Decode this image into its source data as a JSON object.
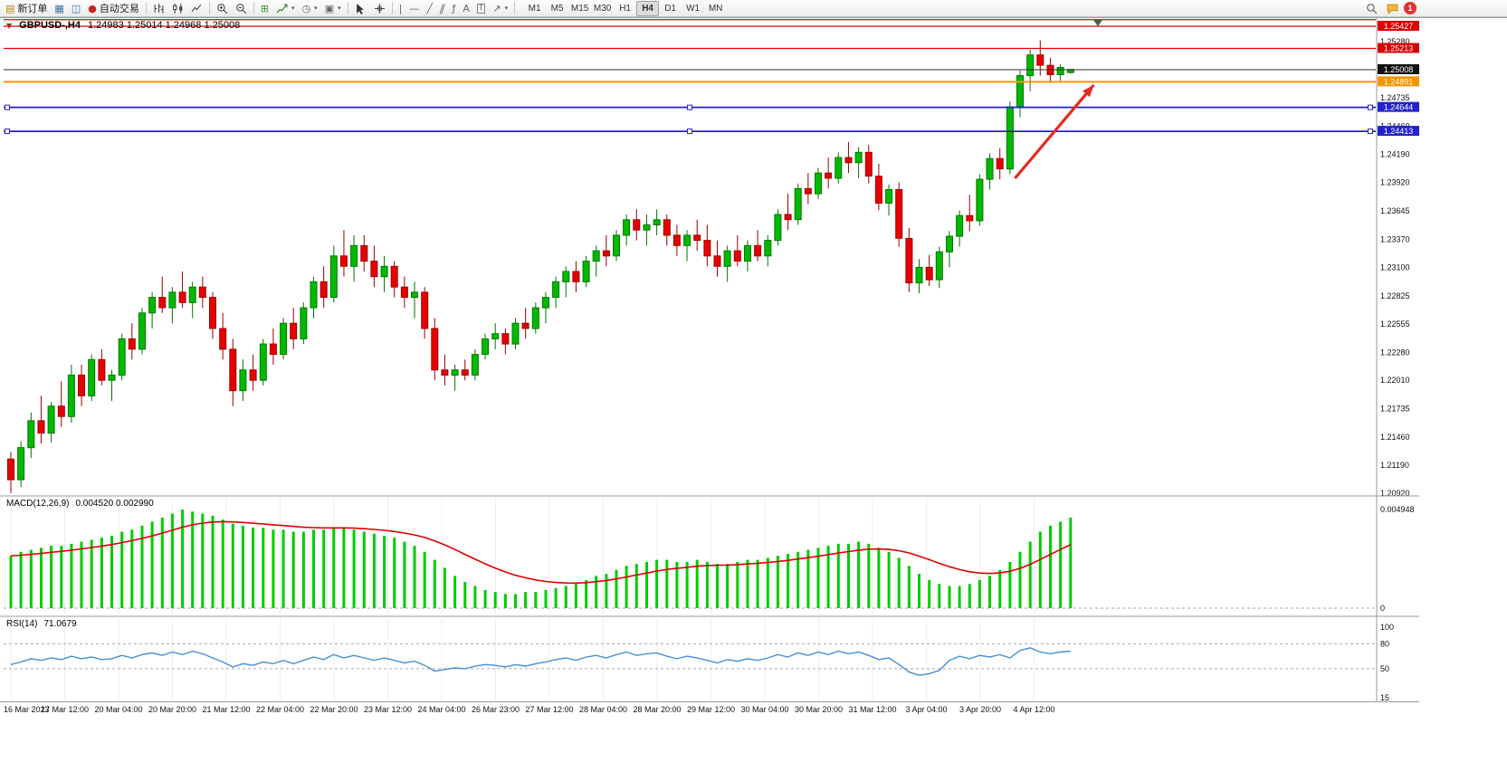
{
  "icons": {
    "new_order": "▤",
    "charts": "▦",
    "profiles": "◫",
    "autotrade": "●",
    "tile": "⊞",
    "clock": "◷",
    "template": "▣",
    "vline": "|",
    "hline": "—",
    "trendline": "╱",
    "channel": "∥",
    "fibonacci": "ƒ",
    "text": "A",
    "label": "T",
    "arrows": "↗",
    "caret": "▾",
    "one_click": "▼"
  },
  "toolbar": {
    "new_order_label": "新订单",
    "autotrade_label": "自动交易",
    "timeframes": [
      "M1",
      "M5",
      "M15",
      "M30",
      "H1",
      "H4",
      "D1",
      "W1",
      "MN"
    ],
    "active_timeframe": "H4",
    "notification_count": "1"
  },
  "chart": {
    "title": "GBPUSD-,H4",
    "ohlc": "1.24983 1.25014 1.24968 1.25008"
  },
  "macd": {
    "label": "MACD(12,26,9)",
    "values": "0.004520 0.002990"
  },
  "rsi": {
    "label": "RSI(14)",
    "value": "71.0679"
  },
  "chart_data": {
    "type": "candlestick",
    "symbol": "GBPUSD",
    "period": "H4",
    "price_range": [
      1.2092,
      1.2549
    ],
    "candles": [
      [
        1.2125,
        1.2132,
        1.2092,
        1.2105
      ],
      [
        1.2105,
        1.2142,
        1.2098,
        1.2136
      ],
      [
        1.2136,
        1.217,
        1.2126,
        1.2162
      ],
      [
        1.2162,
        1.2186,
        1.214,
        1.215
      ],
      [
        1.215,
        1.218,
        1.2141,
        1.2176
      ],
      [
        1.2176,
        1.22,
        1.2156,
        1.2166
      ],
      [
        1.2166,
        1.2216,
        1.216,
        1.2206
      ],
      [
        1.2206,
        1.2216,
        1.2176,
        1.2186
      ],
      [
        1.2186,
        1.2226,
        1.2181,
        1.2221
      ],
      [
        1.2221,
        1.2231,
        1.2196,
        1.2201
      ],
      [
        1.2201,
        1.2211,
        1.2181,
        1.2206
      ],
      [
        1.2206,
        1.2246,
        1.2201,
        1.2241
      ],
      [
        1.2241,
        1.2256,
        1.2221,
        1.2231
      ],
      [
        1.2231,
        1.2271,
        1.2226,
        1.2266
      ],
      [
        1.2266,
        1.2286,
        1.2251,
        1.2281
      ],
      [
        1.2281,
        1.2301,
        1.2266,
        1.2271
      ],
      [
        1.2271,
        1.2291,
        1.2256,
        1.2286
      ],
      [
        1.2286,
        1.2306,
        1.2271,
        1.2276
      ],
      [
        1.2276,
        1.2296,
        1.2261,
        1.2291
      ],
      [
        1.2291,
        1.2301,
        1.2271,
        1.2281
      ],
      [
        1.2281,
        1.2286,
        1.2241,
        1.2251
      ],
      [
        1.2251,
        1.2266,
        1.2221,
        1.2231
      ],
      [
        1.2231,
        1.2241,
        1.2176,
        1.2191
      ],
      [
        1.2191,
        1.2221,
        1.2181,
        1.2211
      ],
      [
        1.2211,
        1.2226,
        1.2191,
        1.2201
      ],
      [
        1.2201,
        1.2241,
        1.2196,
        1.2236
      ],
      [
        1.2236,
        1.2251,
        1.2216,
        1.2226
      ],
      [
        1.2226,
        1.2261,
        1.2221,
        1.2256
      ],
      [
        1.2256,
        1.2271,
        1.2231,
        1.2241
      ],
      [
        1.2241,
        1.2276,
        1.2236,
        1.2271
      ],
      [
        1.2271,
        1.2301,
        1.2261,
        1.2296
      ],
      [
        1.2296,
        1.2311,
        1.2271,
        1.2281
      ],
      [
        1.2281,
        1.2331,
        1.2276,
        1.2321
      ],
      [
        1.2321,
        1.2346,
        1.2301,
        1.2311
      ],
      [
        1.2311,
        1.2341,
        1.2296,
        1.2331
      ],
      [
        1.2331,
        1.2341,
        1.2306,
        1.2316
      ],
      [
        1.2316,
        1.2331,
        1.2291,
        1.2301
      ],
      [
        1.2301,
        1.2321,
        1.2286,
        1.2311
      ],
      [
        1.2311,
        1.2316,
        1.2281,
        1.2291
      ],
      [
        1.2291,
        1.2301,
        1.2271,
        1.2281
      ],
      [
        1.2281,
        1.2296,
        1.2261,
        1.2286
      ],
      [
        1.2286,
        1.2291,
        1.2241,
        1.2251
      ],
      [
        1.2251,
        1.2261,
        1.2201,
        1.2211
      ],
      [
        1.2211,
        1.2226,
        1.2196,
        1.2206
      ],
      [
        1.2206,
        1.2216,
        1.2191,
        1.2211
      ],
      [
        1.2211,
        1.2221,
        1.2201,
        1.2206
      ],
      [
        1.2206,
        1.2231,
        1.2201,
        1.2226
      ],
      [
        1.2226,
        1.2246,
        1.2221,
        1.2241
      ],
      [
        1.2241,
        1.2256,
        1.2231,
        1.2246
      ],
      [
        1.2246,
        1.2251,
        1.2226,
        1.2236
      ],
      [
        1.2236,
        1.2261,
        1.2231,
        1.2256
      ],
      [
        1.2256,
        1.2271,
        1.2241,
        1.2251
      ],
      [
        1.2251,
        1.2276,
        1.2246,
        1.2271
      ],
      [
        1.2271,
        1.2286,
        1.2256,
        1.2281
      ],
      [
        1.2281,
        1.2301,
        1.2271,
        1.2296
      ],
      [
        1.2296,
        1.2311,
        1.2281,
        1.2306
      ],
      [
        1.2306,
        1.2316,
        1.2286,
        1.2296
      ],
      [
        1.2296,
        1.2321,
        1.2291,
        1.2316
      ],
      [
        1.2316,
        1.2331,
        1.2301,
        1.2326
      ],
      [
        1.2326,
        1.2341,
        1.2311,
        1.2321
      ],
      [
        1.2321,
        1.2346,
        1.2316,
        1.2341
      ],
      [
        1.2341,
        1.2361,
        1.2331,
        1.2356
      ],
      [
        1.2356,
        1.2366,
        1.2336,
        1.2346
      ],
      [
        1.2346,
        1.2361,
        1.2331,
        1.2351
      ],
      [
        1.2351,
        1.2366,
        1.2341,
        1.2356
      ],
      [
        1.2356,
        1.2361,
        1.2331,
        1.2341
      ],
      [
        1.2341,
        1.2351,
        1.2321,
        1.2331
      ],
      [
        1.2331,
        1.2346,
        1.2316,
        1.2341
      ],
      [
        1.2341,
        1.2356,
        1.2326,
        1.2336
      ],
      [
        1.2336,
        1.2351,
        1.2311,
        1.2321
      ],
      [
        1.2321,
        1.2336,
        1.2301,
        1.2311
      ],
      [
        1.2311,
        1.2331,
        1.2296,
        1.2326
      ],
      [
        1.2326,
        1.2341,
        1.2311,
        1.2316
      ],
      [
        1.2316,
        1.2336,
        1.2306,
        1.2331
      ],
      [
        1.2331,
        1.2346,
        1.2316,
        1.2321
      ],
      [
        1.2321,
        1.2341,
        1.2311,
        1.2336
      ],
      [
        1.2336,
        1.2366,
        1.2331,
        1.2361
      ],
      [
        1.2361,
        1.2381,
        1.2346,
        1.2356
      ],
      [
        1.2356,
        1.2391,
        1.2351,
        1.2386
      ],
      [
        1.2386,
        1.2401,
        1.2371,
        1.2381
      ],
      [
        1.2381,
        1.2406,
        1.2376,
        1.2401
      ],
      [
        1.2401,
        1.2416,
        1.2386,
        1.2396
      ],
      [
        1.2396,
        1.2421,
        1.2391,
        1.2416
      ],
      [
        1.2416,
        1.2431,
        1.2401,
        1.2411
      ],
      [
        1.2411,
        1.2426,
        1.2396,
        1.2421
      ],
      [
        1.2421,
        1.2428,
        1.2391,
        1.2398
      ],
      [
        1.2398,
        1.241,
        1.2365,
        1.2372
      ],
      [
        1.2372,
        1.239,
        1.236,
        1.2385
      ],
      [
        1.2385,
        1.2392,
        1.233,
        1.2338
      ],
      [
        1.2338,
        1.2348,
        1.2286,
        1.2295
      ],
      [
        1.2295,
        1.2318,
        1.2285,
        1.231
      ],
      [
        1.231,
        1.2322,
        1.2292,
        1.2298
      ],
      [
        1.2298,
        1.233,
        1.229,
        1.2325
      ],
      [
        1.2325,
        1.2345,
        1.231,
        1.234
      ],
      [
        1.234,
        1.2365,
        1.233,
        1.236
      ],
      [
        1.236,
        1.238,
        1.2345,
        1.2355
      ],
      [
        1.2355,
        1.24,
        1.235,
        1.2395
      ],
      [
        1.2395,
        1.242,
        1.2385,
        1.2415
      ],
      [
        1.2415,
        1.2425,
        1.2395,
        1.2405
      ],
      [
        1.2405,
        1.247,
        1.24,
        1.2465
      ],
      [
        1.2465,
        1.25,
        1.2455,
        1.2495
      ],
      [
        1.2495,
        1.252,
        1.248,
        1.2515
      ],
      [
        1.2515,
        1.2529,
        1.2495,
        1.2505
      ],
      [
        1.2505,
        1.2512,
        1.2488,
        1.2496
      ],
      [
        1.2496,
        1.2506,
        1.249,
        1.2503
      ],
      [
        1.2498,
        1.2501,
        1.2497,
        1.2501
      ]
    ],
    "hlines": [
      {
        "price": 1.2549,
        "color": "#e00000",
        "width": 1.3,
        "label": ""
      },
      {
        "price": 1.25427,
        "color": "#e00000",
        "width": 1.3,
        "label": "1.25427"
      },
      {
        "price": 1.25213,
        "color": "#e00000",
        "width": 1.3,
        "label": "1.25213"
      },
      {
        "price": 1.25008,
        "color": "#2a2a2a",
        "width": 1,
        "label": "1.25008"
      },
      {
        "price": 1.24891,
        "color": "#ff9500",
        "width": 2,
        "label": "1.24891"
      },
      {
        "price": 1.24644,
        "color": "#2222cc",
        "width": 1.8,
        "label": "1.24644",
        "handles": true
      },
      {
        "price": 1.24413,
        "color": "#2222cc",
        "width": 1.8,
        "label": "1.24413",
        "handles": true
      }
    ],
    "price_axis": {
      "grid_labels": [
        "1.25280",
        "1.25010",
        "1.24735",
        "1.24460",
        "1.24190",
        "1.23920",
        "1.23645",
        "1.23370",
        "1.23100",
        "1.22825",
        "1.22555",
        "1.22280",
        "1.22010",
        "1.21735",
        "1.21460",
        "1.21190",
        "1.20920"
      ],
      "badges": [
        {
          "price": 1.25427,
          "text": "1.25427",
          "color": "#d80000"
        },
        {
          "price": 1.25213,
          "text": "1.25213",
          "color": "#d80000"
        },
        {
          "price": 1.25008,
          "text": "1.25008",
          "color": "#111111"
        },
        {
          "price": 1.24891,
          "text": "1.24891",
          "color": "#f29400"
        },
        {
          "price": 1.24644,
          "text": "1.24644",
          "color": "#2222cc"
        },
        {
          "price": 1.24413,
          "text": "1.24413",
          "color": "#2222cc"
        }
      ]
    },
    "time_labels": [
      "16 Mar 2023",
      "17 Mar 12:00",
      "20 Mar 04:00",
      "20 Mar 20:00",
      "21 Mar 12:00",
      "22 Mar 04:00",
      "22 Mar 20:00",
      "23 Mar 12:00",
      "24 Mar 04:00",
      "26 Mar 23:00",
      "27 Mar 12:00",
      "28 Mar 04:00",
      "28 Mar 20:00",
      "29 Mar 12:00",
      "30 Mar 04:00",
      "30 Mar 20:00",
      "31 Mar 12:00",
      "3 Apr 04:00",
      "3 Apr 20:00",
      "4 Apr 12:00"
    ],
    "arrow": {
      "from_bar": 99.5,
      "from_price": 1.2396,
      "to_bar": 107.3,
      "to_price": 1.2486,
      "color": "#e42b1e"
    },
    "macd": {
      "histogram_color": "#00cc00",
      "signal_color": "#e00000",
      "scale_top": "0.004948",
      "scale_bottom": "0",
      "histogram": [
        0.0026,
        0.0028,
        0.0029,
        0.003,
        0.0031,
        0.0031,
        0.0032,
        0.0033,
        0.0034,
        0.0035,
        0.0036,
        0.0038,
        0.0039,
        0.0041,
        0.0043,
        0.0045,
        0.0047,
        0.0049,
        0.0048,
        0.0047,
        0.0046,
        0.0044,
        0.0042,
        0.0041,
        0.004,
        0.004,
        0.0039,
        0.0039,
        0.0038,
        0.0038,
        0.0039,
        0.0039,
        0.004,
        0.004,
        0.0039,
        0.0038,
        0.0037,
        0.0036,
        0.0035,
        0.0033,
        0.0031,
        0.0028,
        0.0024,
        0.002,
        0.0016,
        0.0013,
        0.0011,
        0.0009,
        0.0008,
        0.0007,
        0.0007,
        0.0008,
        0.0008,
        0.0009,
        0.001,
        0.0011,
        0.0012,
        0.0014,
        0.0016,
        0.0017,
        0.0019,
        0.0021,
        0.0022,
        0.0023,
        0.0024,
        0.0024,
        0.0023,
        0.0023,
        0.0024,
        0.0023,
        0.0022,
        0.0022,
        0.0023,
        0.0024,
        0.0024,
        0.0025,
        0.0026,
        0.0027,
        0.0028,
        0.0029,
        0.003,
        0.0031,
        0.0032,
        0.0032,
        0.0033,
        0.0032,
        0.003,
        0.0028,
        0.0025,
        0.0021,
        0.0017,
        0.0014,
        0.0012,
        0.0011,
        0.0011,
        0.0012,
        0.0014,
        0.0016,
        0.0019,
        0.0023,
        0.0028,
        0.0033,
        0.0038,
        0.0041,
        0.0043,
        0.0045
      ]
    },
    "rsi": {
      "line_color": "#4a8fd4",
      "scale_labels": [
        "100",
        "80",
        "50",
        "15"
      ],
      "levels": [
        80,
        50
      ],
      "values": [
        55,
        58,
        62,
        60,
        63,
        61,
        65,
        62,
        64,
        61,
        62,
        66,
        63,
        67,
        69,
        66,
        70,
        67,
        71,
        68,
        63,
        58,
        52,
        56,
        54,
        58,
        56,
        60,
        56,
        60,
        64,
        61,
        67,
        63,
        66,
        63,
        60,
        63,
        60,
        57,
        59,
        54,
        47,
        49,
        51,
        50,
        53,
        55,
        54,
        52,
        55,
        53,
        56,
        58,
        61,
        63,
        60,
        64,
        66,
        63,
        67,
        70,
        66,
        68,
        69,
        65,
        62,
        65,
        63,
        60,
        57,
        61,
        59,
        62,
        60,
        63,
        67,
        64,
        69,
        66,
        70,
        67,
        71,
        68,
        70,
        66,
        61,
        63,
        55,
        46,
        42,
        44,
        48,
        60,
        65,
        62,
        66,
        64,
        67,
        63,
        72,
        75,
        70,
        68,
        70,
        71
      ]
    }
  }
}
